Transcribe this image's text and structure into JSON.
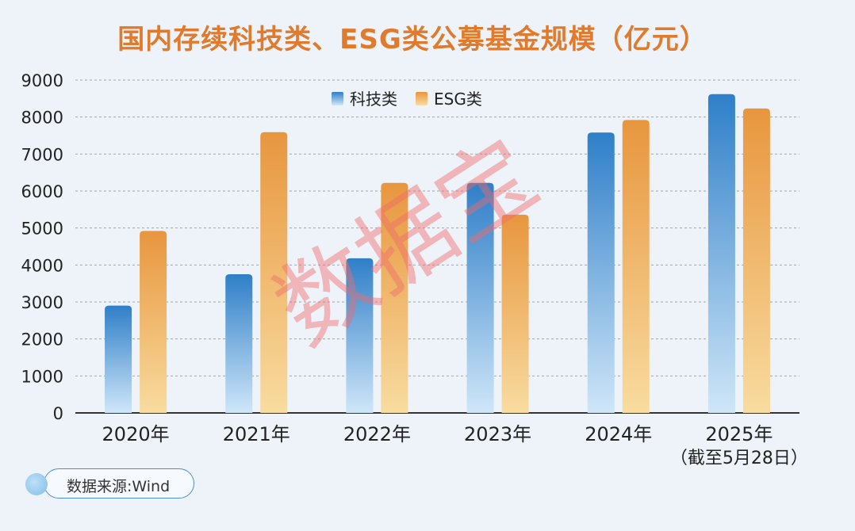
{
  "title": "国内存续科技类、ESG类公募基金规模（亿元）",
  "source": "数据来源:Wind",
  "watermark": "数据宝",
  "chart_data": {
    "type": "bar",
    "categories": [
      "2020年",
      "2021年",
      "2022年",
      "2023年",
      "2024年",
      "2025年"
    ],
    "category_sublabels": [
      "",
      "",
      "",
      "",
      "",
      "（截至5月28日）"
    ],
    "series": [
      {
        "name": "科技类",
        "values": [
          2900,
          3750,
          4180,
          6220,
          7580,
          8620
        ],
        "color_top": "#2f7fc8",
        "color_bottom": "#cfe6f8"
      },
      {
        "name": "ESG类",
        "values": [
          4920,
          7590,
          6220,
          5360,
          7920,
          8230
        ],
        "color_top": "#e8963e",
        "color_bottom": "#f8dca0"
      }
    ],
    "yticks": [
      0,
      1000,
      2000,
      3000,
      4000,
      5000,
      6000,
      7000,
      8000,
      9000
    ],
    "ylim": [
      0,
      9000
    ],
    "grid": true,
    "legend_position": "top-center"
  }
}
